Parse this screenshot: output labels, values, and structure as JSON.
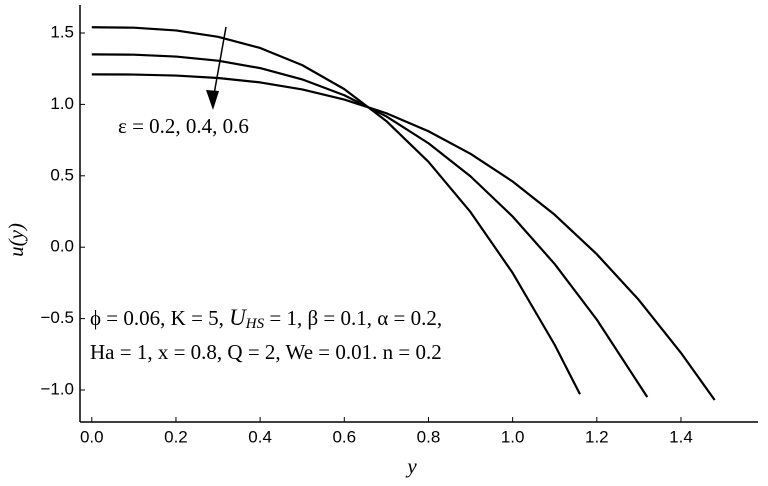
{
  "chart_data": {
    "type": "line",
    "xlabel": "y",
    "ylabel": "u(y)",
    "annotations": [
      "ε = 0.2, 0.4, 0.6",
      "ϕ = 0.06, K = 5, ",
      "U",
      "HS",
      " = 1, β = 0.1, α = 0.2,",
      "Ha = 1, x = 0.8, Q = 2, We = 0.01. n = 0.2"
    ],
    "series": [
      {
        "color": "#000000",
        "x": [
          0,
          0.1,
          0.2,
          0.3,
          0.4,
          0.5,
          0.6,
          0.7,
          0.8,
          0.9,
          1.0,
          1.1,
          1.16
        ],
        "values": [
          1.54,
          1.537,
          1.518,
          1.473,
          1.395,
          1.275,
          1.107,
          0.883,
          0.598,
          0.246,
          -0.18,
          -0.684,
          -1.03
        ]
      },
      {
        "color": "#000000",
        "x": [
          0,
          0.1,
          0.2,
          0.3,
          0.4,
          0.5,
          0.6,
          0.7,
          0.8,
          0.9,
          1.0,
          1.1,
          1.2,
          1.32
        ],
        "values": [
          1.35,
          1.348,
          1.335,
          1.306,
          1.254,
          1.175,
          1.064,
          0.916,
          0.728,
          0.496,
          0.215,
          -0.118,
          -0.507,
          -1.05
        ]
      },
      {
        "color": "#000000",
        "x": [
          0,
          0.1,
          0.2,
          0.3,
          0.4,
          0.5,
          0.6,
          0.7,
          0.8,
          0.9,
          1.0,
          1.1,
          1.2,
          1.3,
          1.4,
          1.48
        ],
        "values": [
          1.21,
          1.209,
          1.202,
          1.185,
          1.154,
          1.105,
          1.034,
          0.938,
          0.812,
          0.654,
          0.46,
          0.227,
          -0.049,
          -0.37,
          -0.74,
          -1.07
        ]
      }
    ],
    "xlim": [
      -0.028,
      1.583
    ],
    "ylim": [
      -1.224,
      1.696
    ],
    "xticks": [
      {
        "value": 0,
        "label": "0.0"
      },
      0.2,
      0.4,
      0.6,
      0.8,
      {
        "value": 1,
        "label": "1.0"
      },
      1.2,
      1.4
    ],
    "yticks": [
      {
        "value": -1,
        "label": "−1.0"
      },
      {
        "value": -0.5,
        "label": "−0.5"
      },
      {
        "value": 0,
        "label": "0.0"
      },
      0.5,
      {
        "value": 1,
        "label": "1.0"
      },
      1.5
    ],
    "grid": false
  }
}
